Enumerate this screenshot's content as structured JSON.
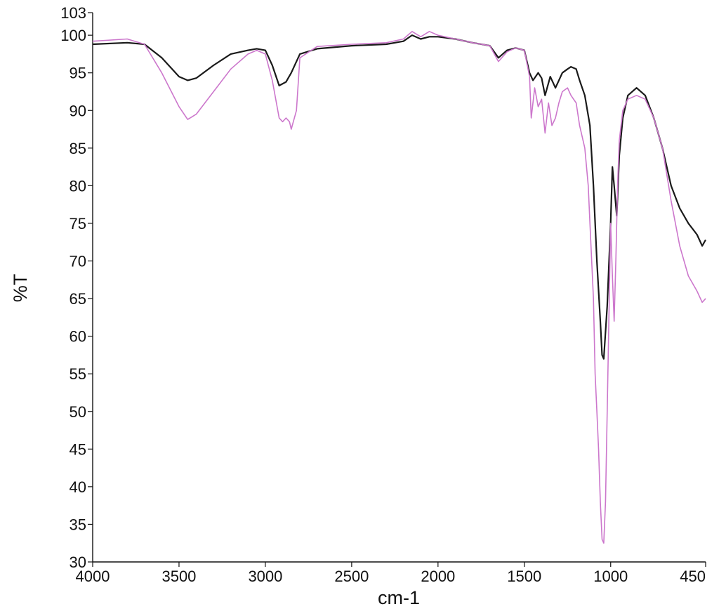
{
  "chart_data": {
    "type": "line",
    "xlabel": "cm-1",
    "ylabel": "%T",
    "xlim": [
      4000,
      450
    ],
    "ylim": [
      30,
      103
    ],
    "x_ticks": [
      4000,
      3500,
      3000,
      2500,
      2000,
      1500,
      1000,
      450
    ],
    "y_ticks": [
      30,
      35,
      40,
      45,
      50,
      55,
      60,
      65,
      70,
      75,
      80,
      85,
      90,
      95,
      100,
      103
    ],
    "grid": false,
    "legend": "none",
    "series": [
      {
        "color": "#1a1a1a",
        "x": [
          4000,
          3800,
          3700,
          3600,
          3500,
          3450,
          3400,
          3300,
          3200,
          3100,
          3050,
          3000,
          2960,
          2920,
          2880,
          2850,
          2800,
          2700,
          2500,
          2300,
          2200,
          2150,
          2100,
          2050,
          2000,
          1900,
          1800,
          1700,
          1650,
          1600,
          1550,
          1500,
          1470,
          1450,
          1420,
          1400,
          1380,
          1350,
          1320,
          1300,
          1280,
          1250,
          1230,
          1200,
          1180,
          1150,
          1120,
          1100,
          1080,
          1060,
          1050,
          1040,
          1020,
          1000,
          990,
          980,
          965,
          950,
          930,
          900,
          850,
          800,
          750,
          700,
          650,
          600,
          550,
          500,
          470,
          450
        ],
        "y": [
          98.8,
          99.0,
          98.8,
          97.0,
          94.5,
          94.0,
          94.3,
          96.0,
          97.5,
          98.0,
          98.2,
          98.0,
          96.0,
          93.3,
          93.8,
          95.0,
          97.5,
          98.2,
          98.6,
          98.8,
          99.2,
          100.0,
          99.5,
          99.8,
          99.8,
          99.5,
          99.0,
          98.6,
          97.0,
          98.0,
          98.3,
          98.0,
          95.0,
          94.0,
          95.0,
          94.3,
          92.0,
          94.5,
          93.0,
          94.0,
          95.0,
          95.5,
          95.8,
          95.5,
          94.0,
          92.0,
          88.0,
          80.0,
          70.0,
          62.0,
          57.5,
          57.0,
          64.0,
          75.0,
          82.5,
          80.0,
          76.0,
          84.0,
          89.0,
          92.0,
          93.0,
          92.0,
          89.0,
          85.0,
          80.0,
          77.0,
          75.0,
          73.5,
          72.0,
          72.8
        ]
      },
      {
        "color": "#cc77cc",
        "x": [
          4000,
          3800,
          3700,
          3600,
          3500,
          3450,
          3400,
          3300,
          3200,
          3100,
          3050,
          3000,
          2960,
          2920,
          2900,
          2880,
          2860,
          2850,
          2820,
          2800,
          2700,
          2500,
          2300,
          2200,
          2150,
          2100,
          2050,
          2000,
          1900,
          1800,
          1700,
          1650,
          1600,
          1550,
          1500,
          1470,
          1460,
          1440,
          1420,
          1400,
          1380,
          1360,
          1340,
          1320,
          1300,
          1280,
          1250,
          1230,
          1200,
          1180,
          1150,
          1130,
          1120,
          1100,
          1090,
          1080,
          1070,
          1060,
          1050,
          1040,
          1030,
          1020,
          1000,
          990,
          980,
          970,
          960,
          950,
          930,
          900,
          850,
          800,
          750,
          700,
          650,
          600,
          550,
          500,
          470,
          450
        ],
        "y": [
          99.2,
          99.5,
          98.8,
          95.0,
          90.5,
          88.8,
          89.5,
          92.5,
          95.5,
          97.5,
          98.0,
          97.5,
          94.0,
          89.0,
          88.5,
          89.0,
          88.5,
          87.5,
          90.0,
          97.0,
          98.5,
          98.8,
          99.0,
          99.5,
          100.5,
          99.8,
          100.5,
          100.0,
          99.5,
          99.0,
          98.6,
          96.5,
          97.8,
          98.3,
          98.0,
          94.5,
          89.0,
          93.0,
          90.5,
          91.5,
          87.0,
          91.0,
          88.0,
          89.0,
          91.0,
          92.5,
          93.0,
          92.0,
          91.0,
          88.0,
          85.0,
          80.0,
          75.0,
          65.0,
          55.0,
          50.0,
          45.0,
          38.0,
          33.0,
          32.5,
          38.0,
          50.0,
          75.0,
          68.0,
          62.0,
          70.0,
          80.0,
          86.0,
          90.0,
          91.5,
          92.0,
          91.5,
          89.0,
          85.0,
          78.0,
          72.0,
          68.0,
          66.0,
          64.5,
          65.0
        ]
      }
    ]
  }
}
